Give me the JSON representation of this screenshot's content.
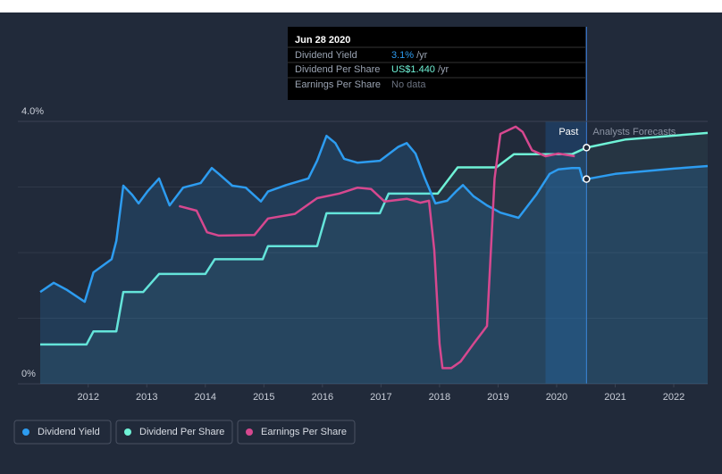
{
  "chart_data": {
    "type": "line",
    "xlim": [
      2011.18,
      2022.58
    ],
    "xticks": [
      2012,
      2013,
      2014,
      2015,
      2016,
      2017,
      2018,
      2019,
      2020,
      2021,
      2022
    ],
    "ylim": [
      0,
      4
    ],
    "yticks": [
      {
        "value": 0,
        "label": "0%"
      },
      {
        "value": 4,
        "label": "4.0%"
      }
    ],
    "y2lim": [
      0,
      1.6
    ],
    "y3lim": [
      0,
      4
    ],
    "past_label": "Past",
    "forecast_label": "Analysts Forecasts",
    "series": [
      {
        "name": "Dividend Yield",
        "color": "#2d9cf0",
        "x": [
          2011.18,
          2011.41,
          2011.64,
          2011.94,
          2012.09,
          2012.4,
          2012.48,
          2012.6,
          2012.75,
          2012.86,
          2013.01,
          2013.21,
          2013.39,
          2013.62,
          2013.92,
          2014.11,
          2014.23,
          2014.46,
          2014.69,
          2014.95,
          2015.07,
          2015.38,
          2015.76,
          2015.91,
          2016.07,
          2016.22,
          2016.37,
          2016.6,
          2016.98,
          2017.29,
          2017.44,
          2017.59,
          2017.75,
          2017.93,
          2018.13,
          2018.28,
          2018.4,
          2018.58,
          2018.81,
          2019.04,
          2019.35,
          2019.65,
          2019.88,
          2020.03,
          2020.26,
          2020.39,
          2020.45,
          2020.51,
          2021.0,
          2022.0,
          2022.58
        ],
        "values": [
          1.4,
          1.54,
          1.43,
          1.25,
          1.7,
          1.9,
          2.18,
          3.02,
          2.88,
          2.75,
          2.93,
          3.13,
          2.72,
          2.99,
          3.06,
          3.29,
          3.2,
          3.02,
          2.99,
          2.78,
          2.93,
          3.03,
          3.13,
          3.4,
          3.78,
          3.67,
          3.43,
          3.37,
          3.4,
          3.61,
          3.67,
          3.51,
          3.13,
          2.75,
          2.79,
          2.93,
          3.03,
          2.86,
          2.72,
          2.61,
          2.53,
          2.88,
          3.2,
          3.27,
          3.29,
          3.29,
          3.1,
          3.12,
          3.2,
          3.28,
          3.32
        ]
      },
      {
        "name": "Dividend Per Share",
        "color": "#6ff2d6",
        "axis": "y2",
        "x": [
          2011.18,
          2011.97,
          2012.09,
          2012.48,
          2012.6,
          2012.94,
          2013.21,
          2014.0,
          2014.16,
          2014.98,
          2015.07,
          2015.91,
          2016.07,
          2016.98,
          2017.13,
          2017.97,
          2018.31,
          2018.97,
          2019.27,
          2020.26,
          2020.51,
          2021.18,
          2022.58
        ],
        "values": [
          0.24,
          0.24,
          0.32,
          0.32,
          0.56,
          0.56,
          0.67,
          0.67,
          0.76,
          0.76,
          0.84,
          0.84,
          1.04,
          1.04,
          1.16,
          1.16,
          1.32,
          1.32,
          1.4,
          1.4,
          1.44,
          1.49,
          1.53
        ]
      },
      {
        "name": "Earnings Per Share",
        "color": "#d6488f",
        "axis": "y3",
        "x": [
          2013.55,
          2013.85,
          2014.03,
          2014.23,
          2014.84,
          2015.07,
          2015.53,
          2015.91,
          2016.29,
          2016.6,
          2016.83,
          2017.06,
          2017.44,
          2017.67,
          2017.82,
          2017.91,
          2018.0,
          2018.05,
          2018.2,
          2018.36,
          2018.58,
          2018.81,
          2018.94,
          2019.04,
          2019.3,
          2019.42,
          2019.58,
          2019.81,
          2020.03,
          2020.31
        ],
        "values": [
          2.71,
          2.64,
          2.31,
          2.26,
          2.27,
          2.52,
          2.59,
          2.83,
          2.9,
          2.99,
          2.97,
          2.78,
          2.82,
          2.76,
          2.79,
          2.04,
          0.61,
          0.24,
          0.24,
          0.34,
          0.61,
          0.88,
          3.13,
          3.81,
          3.92,
          3.84,
          3.56,
          3.47,
          3.51,
          3.47
        ]
      }
    ]
  },
  "tooltip": {
    "date": "Jun 28 2020",
    "rows": [
      {
        "label": "Dividend Yield",
        "value": "3.1%",
        "unit": "/yr"
      },
      {
        "label": "Dividend Per Share",
        "value": "US$1.440",
        "unit": "/yr"
      },
      {
        "label": "Earnings Per Share",
        "value": "No data"
      }
    ]
  }
}
